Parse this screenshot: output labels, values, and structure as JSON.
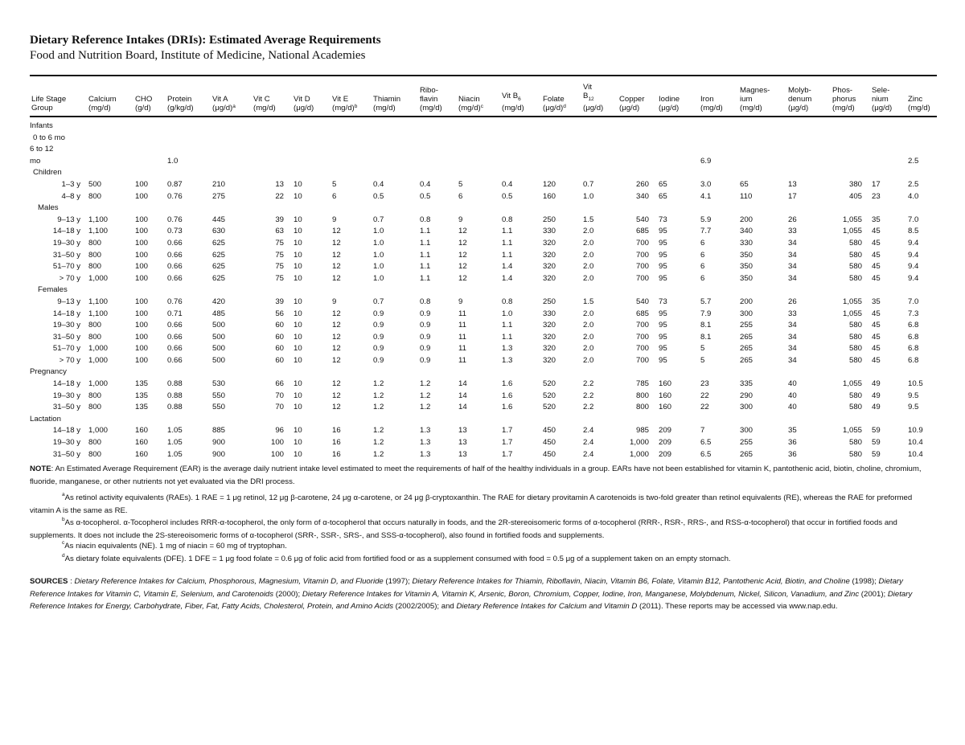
{
  "title": "Dietary Reference Intakes (DRIs): Estimated Average Requirements",
  "subtitle": "Food and Nutrition Board, Institute of Medicine, National Academies",
  "table": {
    "headers": [
      {
        "lines": [
          "Life Stage",
          "Group"
        ]
      },
      {
        "lines": [
          "Calcium",
          "(mg/d)"
        ]
      },
      {
        "lines": [
          "CHO",
          "(g/d)"
        ]
      },
      {
        "lines": [
          "Protein",
          "(g/kg/d)"
        ]
      },
      {
        "lines": [
          "Vit A",
          "(μg/d)"
        ],
        "sup": "a"
      },
      {
        "lines": [
          "Vit C",
          "(mg/d)"
        ]
      },
      {
        "lines": [
          "Vit D",
          "(μg/d)"
        ]
      },
      {
        "lines": [
          "Vit E",
          "(mg/d)"
        ],
        "sup": "b"
      },
      {
        "lines": [
          "Thiamin",
          "(mg/d)"
        ]
      },
      {
        "lines": [
          "Ribo-",
          "flavin",
          "(mg/d)"
        ]
      },
      {
        "lines": [
          "Niacin",
          "(mg/d)"
        ],
        "sup": "c"
      },
      {
        "lines": [
          "Vit B",
          "(mg/d)"
        ],
        "sub": "6"
      },
      {
        "lines": [
          "Folate",
          "(μg/d)"
        ],
        "sup": "d"
      },
      {
        "lines": [
          "Vit",
          "B",
          "(μg/d)"
        ],
        "sub": "12"
      },
      {
        "lines": [
          "Copper",
          "(μg/d)"
        ]
      },
      {
        "lines": [
          "Iodine",
          "(μg/d)"
        ]
      },
      {
        "lines": [
          "Iron",
          "(mg/d)"
        ]
      },
      {
        "lines": [
          "Magnes-",
          "ium",
          "(mg/d)"
        ]
      },
      {
        "lines": [
          "Molyb-",
          "denum",
          "(μg/d)"
        ]
      },
      {
        "lines": [
          "Phos-",
          "phorus",
          "(mg/d)"
        ]
      },
      {
        "lines": [
          "Sele-",
          "nium",
          "(μg/d)"
        ]
      },
      {
        "lines": [
          "Zinc",
          "(mg/d)"
        ]
      }
    ],
    "rows": [
      {
        "label": "Infants",
        "group": true
      },
      {
        "label": "0 to 6 mo",
        "values": []
      },
      {
        "label": "6 to 12",
        "values": []
      },
      {
        "label": "mo",
        "values": [
          "",
          "",
          "1.0",
          "",
          "",
          "",
          "",
          "",
          "",
          "",
          "",
          "",
          "",
          "",
          "",
          "6.9",
          "",
          "",
          "",
          "",
          "2.5"
        ]
      },
      {
        "label": "Children",
        "group": true
      },
      {
        "label": "1–3 y",
        "values": [
          "500",
          "100",
          "0.87",
          "210",
          "13",
          "10",
          "5",
          "0.4",
          "0.4",
          "5",
          "0.4",
          "120",
          "0.7",
          "260",
          "65",
          "3.0",
          "65",
          "13",
          "380",
          "17",
          "2.5"
        ]
      },
      {
        "label": "4–8 y",
        "values": [
          "800",
          "100",
          "0.76",
          "275",
          "22",
          "10",
          "6",
          "0.5",
          "0.5",
          "6",
          "0.5",
          "160",
          "1.0",
          "340",
          "65",
          "4.1",
          "110",
          "17",
          "405",
          "23",
          "4.0"
        ]
      },
      {
        "label": "Males",
        "group": true
      },
      {
        "label": "9–13 y",
        "values": [
          "1,100",
          "100",
          "0.76",
          "445",
          "39",
          "10",
          "9",
          "0.7",
          "0.8",
          "9",
          "0.8",
          "250",
          "1.5",
          "540",
          "73",
          "5.9",
          "200",
          "26",
          "1,055",
          "35",
          "7.0"
        ]
      },
      {
        "label": "14–18 y",
        "values": [
          "1,100",
          "100",
          "0.73",
          "630",
          "63",
          "10",
          "12",
          "1.0",
          "1.1",
          "12",
          "1.1",
          "330",
          "2.0",
          "685",
          "95",
          "7.7",
          "340",
          "33",
          "1,055",
          "45",
          "8.5"
        ]
      },
      {
        "label": "19–30 y",
        "values": [
          "800",
          "100",
          "0.66",
          "625",
          "75",
          "10",
          "12",
          "1.0",
          "1.1",
          "12",
          "1.1",
          "320",
          "2.0",
          "700",
          "95",
          "6",
          "330",
          "34",
          "580",
          "45",
          "9.4"
        ]
      },
      {
        "label": "31–50 y",
        "values": [
          "800",
          "100",
          "0.66",
          "625",
          "75",
          "10",
          "12",
          "1.0",
          "1.1",
          "12",
          "1.1",
          "320",
          "2.0",
          "700",
          "95",
          "6",
          "350",
          "34",
          "580",
          "45",
          "9.4"
        ]
      },
      {
        "label": "51–70 y",
        "values": [
          "800",
          "100",
          "0.66",
          "625",
          "75",
          "10",
          "12",
          "1.0",
          "1.1",
          "12",
          "1.4",
          "320",
          "2.0",
          "700",
          "95",
          "6",
          "350",
          "34",
          "580",
          "45",
          "9.4"
        ]
      },
      {
        "label": "> 70 y",
        "values": [
          "1,000",
          "100",
          "0.66",
          "625",
          "75",
          "10",
          "12",
          "1.0",
          "1.1",
          "12",
          "1.4",
          "320",
          "2.0",
          "700",
          "95",
          "6",
          "350",
          "34",
          "580",
          "45",
          "9.4"
        ]
      },
      {
        "label": "Females",
        "group": true
      },
      {
        "label": "9–13 y",
        "values": [
          "1,100",
          "100",
          "0.76",
          "420",
          "39",
          "10",
          "9",
          "0.7",
          "0.8",
          "9",
          "0.8",
          "250",
          "1.5",
          "540",
          "73",
          "5.7",
          "200",
          "26",
          "1,055",
          "35",
          "7.0"
        ]
      },
      {
        "label": "14–18 y",
        "values": [
          "1,100",
          "100",
          "0.71",
          "485",
          "56",
          "10",
          "12",
          "0.9",
          "0.9",
          "11",
          "1.0",
          "330",
          "2.0",
          "685",
          "95",
          "7.9",
          "300",
          "33",
          "1,055",
          "45",
          "7.3"
        ]
      },
      {
        "label": "19–30 y",
        "values": [
          "800",
          "100",
          "0.66",
          "500",
          "60",
          "10",
          "12",
          "0.9",
          "0.9",
          "11",
          "1.1",
          "320",
          "2.0",
          "700",
          "95",
          "8.1",
          "255",
          "34",
          "580",
          "45",
          "6.8"
        ]
      },
      {
        "label": "31–50 y",
        "values": [
          "800",
          "100",
          "0.66",
          "500",
          "60",
          "10",
          "12",
          "0.9",
          "0.9",
          "11",
          "1.1",
          "320",
          "2.0",
          "700",
          "95",
          "8.1",
          "265",
          "34",
          "580",
          "45",
          "6.8"
        ]
      },
      {
        "label": "51–70 y",
        "values": [
          "1,000",
          "100",
          "0.66",
          "500",
          "60",
          "10",
          "12",
          "0.9",
          "0.9",
          "11",
          "1.3",
          "320",
          "2.0",
          "700",
          "95",
          "5",
          "265",
          "34",
          "580",
          "45",
          "6.8"
        ]
      },
      {
        "label": "> 70 y",
        "values": [
          "1,000",
          "100",
          "0.66",
          "500",
          "60",
          "10",
          "12",
          "0.9",
          "0.9",
          "11",
          "1.3",
          "320",
          "2.0",
          "700",
          "95",
          "5",
          "265",
          "34",
          "580",
          "45",
          "6.8"
        ]
      },
      {
        "label": "Pregnancy",
        "group": true
      },
      {
        "label": "14–18 y",
        "values": [
          "1,000",
          "135",
          "0.88",
          "530",
          "66",
          "10",
          "12",
          "1.2",
          "1.2",
          "14",
          "1.6",
          "520",
          "2.2",
          "785",
          "160",
          "23",
          "335",
          "40",
          "1,055",
          "49",
          "10.5"
        ]
      },
      {
        "label": "19–30 y",
        "values": [
          "800",
          "135",
          "0.88",
          "550",
          "70",
          "10",
          "12",
          "1.2",
          "1.2",
          "14",
          "1.6",
          "520",
          "2.2",
          "800",
          "160",
          "22",
          "290",
          "40",
          "580",
          "49",
          "9.5"
        ]
      },
      {
        "label": "31–50 y",
        "values": [
          "800",
          "135",
          "0.88",
          "550",
          "70",
          "10",
          "12",
          "1.2",
          "1.2",
          "14",
          "1.6",
          "520",
          "2.2",
          "800",
          "160",
          "22",
          "300",
          "40",
          "580",
          "49",
          "9.5"
        ]
      },
      {
        "label": "Lactation",
        "group": true
      },
      {
        "label": "14–18 y",
        "values": [
          "1,000",
          "160",
          "1.05",
          "885",
          "96",
          "10",
          "16",
          "1.2",
          "1.3",
          "13",
          "1.7",
          "450",
          "2.4",
          "985",
          "209",
          "7",
          "300",
          "35",
          "1,055",
          "59",
          "10.9"
        ]
      },
      {
        "label": "19–30 y",
        "values": [
          "800",
          "160",
          "1.05",
          "900",
          "100",
          "10",
          "16",
          "1.2",
          "1.3",
          "13",
          "1.7",
          "450",
          "2.4",
          "1,000",
          "209",
          "6.5",
          "255",
          "36",
          "580",
          "59",
          "10.4"
        ]
      },
      {
        "label": "31–50 y",
        "values": [
          "800",
          "160",
          "1.05",
          "900",
          "100",
          "10",
          "16",
          "1.2",
          "1.3",
          "13",
          "1.7",
          "450",
          "2.4",
          "1,000",
          "209",
          "6.5",
          "265",
          "36",
          "580",
          "59",
          "10.4"
        ]
      }
    ]
  },
  "note": {
    "label": "NOTE",
    "text": ": An Estimated Average Requirement (EAR) is the average daily nutrient intake level estimated to meet the requirements of half of the healthy individuals in a group. EARs have not been established for vitamin K, pantothenic acid, biotin, choline, chromium, fluoride, manganese, or other nutrients not yet evaluated via the DRI process."
  },
  "footnotes": [
    {
      "marker": "a",
      "text": "As retinol activity equivalents (RAEs). 1 RAE = 1 μg retinol, 12 μg β-carotene, 24 μg α-carotene, or 24 μg β-cryptoxanthin. The RAE for dietary provitamin A carotenoids is two-fold greater than retinol equivalents (RE), whereas the RAE for preformed vitamin A is the same as RE."
    },
    {
      "marker": "b",
      "text": "As α-tocopherol. α-Tocopherol includes RRR-α-tocopherol, the only form of α-tocopherol that occurs naturally in foods, and the 2R-stereoisomeric forms of α-tocopherol (RRR-, RSR-, RRS-, and RSS-α-tocopherol) that occur in fortified foods and supplements. It does not include the 2S-stereoisomeric forms of α-tocopherol (SRR-, SSR-, SRS-, and SSS-α-tocopherol), also found in fortified foods and supplements."
    },
    {
      "marker": "c",
      "text": "As niacin equivalents (NE). 1 mg of niacin = 60 mg of tryptophan."
    },
    {
      "marker": "d",
      "text": "As dietary folate equivalents (DFE). 1 DFE = 1 μg food folate = 0.6 μg of folic acid from fortified food or as a supplement consumed with food = 0.5 μg of a supplement taken on an empty stomach."
    }
  ],
  "sources": {
    "label": "SOURCES",
    "segments": [
      {
        "t": ":  "
      },
      {
        "t": "Dietary Reference Intakes for Calcium, Phosphorous, Magnesium, Vitamin D, and Fluoride",
        "i": true
      },
      {
        "t": " (1997); "
      },
      {
        "t": "Dietary Reference Intakes for Thiamin, Riboflavin, Niacin, Vitamin B6, Folate, Vitamin B12, Pantothenic Acid, Biotin, and Choline",
        "i": true
      },
      {
        "t": " (1998); "
      },
      {
        "t": "Dietary Reference Intakes for Vitamin C, Vitamin E, Selenium, and Carotenoids",
        "i": true
      },
      {
        "t": " (2000); "
      },
      {
        "t": "Dietary Reference Intakes for Vitamin A, Vitamin K, Arsenic, Boron, Chromium, Copper, Iodine, Iron, Manganese, Molybdenum, Nickel, Silicon, Vanadium, and Zinc",
        "i": true
      },
      {
        "t": " (2001); "
      },
      {
        "t": "Dietary Reference Intakes for Energy, Carbohydrate, Fiber, Fat, Fatty Acids, Cholesterol, Protein, and Amino Acids",
        "i": true
      },
      {
        "t": " (2002/2005); and "
      },
      {
        "t": "Dietary Reference Intakes for Calcium and Vitamin D",
        "i": true
      },
      {
        "t": " (2011). These reports may be accessed via www.nap.edu."
      }
    ]
  }
}
